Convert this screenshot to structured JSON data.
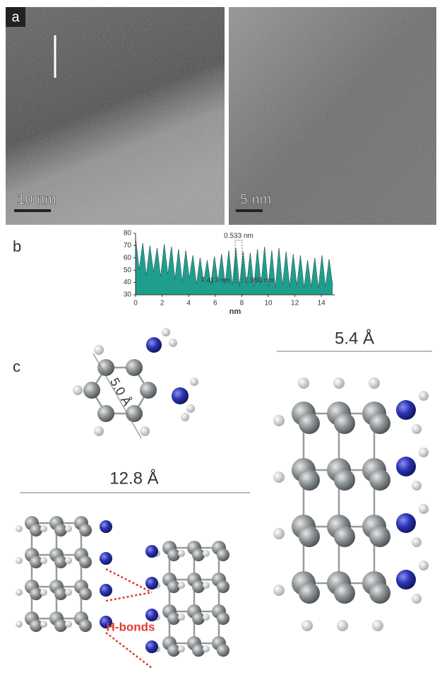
{
  "panel_a": {
    "label": "a",
    "scale_left": "10 nm",
    "scale_right": "5 nm"
  },
  "panel_b": {
    "label": "b"
  },
  "chart_data": {
    "type": "area",
    "x": [
      0,
      0.27,
      0.54,
      0.81,
      1.08,
      1.35,
      1.62,
      1.89,
      2.16,
      2.43,
      2.7,
      2.97,
      3.24,
      3.51,
      3.78,
      4.05,
      4.32,
      4.59,
      4.86,
      5.13,
      5.4,
      5.67,
      5.94,
      6.21,
      6.48,
      6.75,
      7.02,
      7.29,
      7.56,
      7.83,
      8.1,
      8.37,
      8.64,
      8.91,
      9.18,
      9.45,
      9.72,
      9.99,
      10.26,
      10.53,
      10.8,
      11.07,
      11.34,
      11.61,
      11.88,
      12.15,
      12.42,
      12.69,
      12.96,
      13.23,
      13.5,
      13.77,
      14.04,
      14.31,
      14.58,
      14.85
    ],
    "values": [
      76,
      50,
      72,
      45,
      70,
      48,
      68,
      44,
      71,
      46,
      69,
      42,
      67,
      40,
      66,
      43,
      62,
      38,
      60,
      40,
      58,
      38,
      61,
      40,
      63,
      38,
      66,
      37,
      68,
      36,
      65,
      38,
      64,
      36,
      67,
      38,
      69,
      36,
      66,
      35,
      68,
      37,
      65,
      36,
      63,
      37,
      62,
      35,
      58,
      36,
      60,
      35,
      62,
      36,
      59,
      37
    ],
    "color": "#1f9e8e",
    "xlim": [
      0,
      15
    ],
    "xticks": [
      0,
      2,
      4,
      6,
      8,
      10,
      12,
      14
    ],
    "ylim": [
      30,
      80
    ],
    "yticks": [
      30,
      40,
      50,
      60,
      70,
      80
    ],
    "xlabel": "nm",
    "annotations": [
      "0.533 nm",
      "7.417 nm",
      "7.950 nm"
    ]
  },
  "panel_c": {
    "label": "c",
    "ring_width": "5.0 Å",
    "column_width": "5.4 Å",
    "dimer_width": "12.8 Å",
    "hbond_label": "H-bonds"
  }
}
